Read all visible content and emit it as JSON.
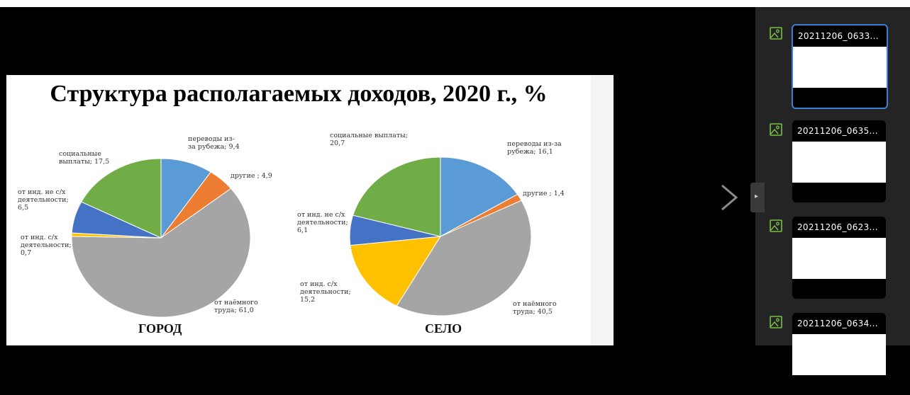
{
  "slide": {
    "title": "Структура располагаемых доходов, 2020 г., %",
    "cursor_glyph": "⁜"
  },
  "chart_data": [
    {
      "type": "pie",
      "title": "ГОРОД",
      "slices": [
        {
          "label": "переводы из-\nза рубежа; 9,4",
          "value": 9.4,
          "color": "#5b9bd5"
        },
        {
          "label": "другие ; 4,9",
          "value": 4.9,
          "color": "#ed7d31"
        },
        {
          "label": "от наёмного\nтруда; 61,0",
          "value": 61.0,
          "color": "#a5a5a5"
        },
        {
          "label": "от инд. с/х\nдеятельности;\n0,7",
          "value": 0.7,
          "color": "#ffc000"
        },
        {
          "label": "от инд. не с/х\nдеятельности;\n6,5",
          "value": 6.5,
          "color": "#4472c4"
        },
        {
          "label": "социальные\nвыплаты; 17,5",
          "value": 17.5,
          "color": "#70ad47"
        }
      ]
    },
    {
      "type": "pie",
      "title": "СЕЛО",
      "slices": [
        {
          "label": "переводы из-за\nрубежа; 16,1",
          "value": 16.1,
          "color": "#5b9bd5"
        },
        {
          "label": "другие ; 1,4",
          "value": 1.4,
          "color": "#ed7d31"
        },
        {
          "label": "от наёмного\nтруда; 40,5",
          "value": 40.5,
          "color": "#a5a5a5"
        },
        {
          "label": "от инд. с/х\nдеятельности;\n15,2",
          "value": 15.2,
          "color": "#ffc000"
        },
        {
          "label": "от инд. не с/х\nдеятельности;\n6,1",
          "value": 6.1,
          "color": "#4472c4"
        },
        {
          "label": "социальные выплаты;\n20,7",
          "value": 20.7,
          "color": "#70ad47"
        }
      ]
    }
  ],
  "panel": {
    "arrow_icon": "chevron-right-icon",
    "items": [
      {
        "name": "20211206_0633...",
        "selected": true
      },
      {
        "name": "20211206_0635...",
        "selected": false
      },
      {
        "name": "20211206_0623...",
        "selected": false
      },
      {
        "name": "20211206_0634...",
        "selected": false
      }
    ]
  }
}
